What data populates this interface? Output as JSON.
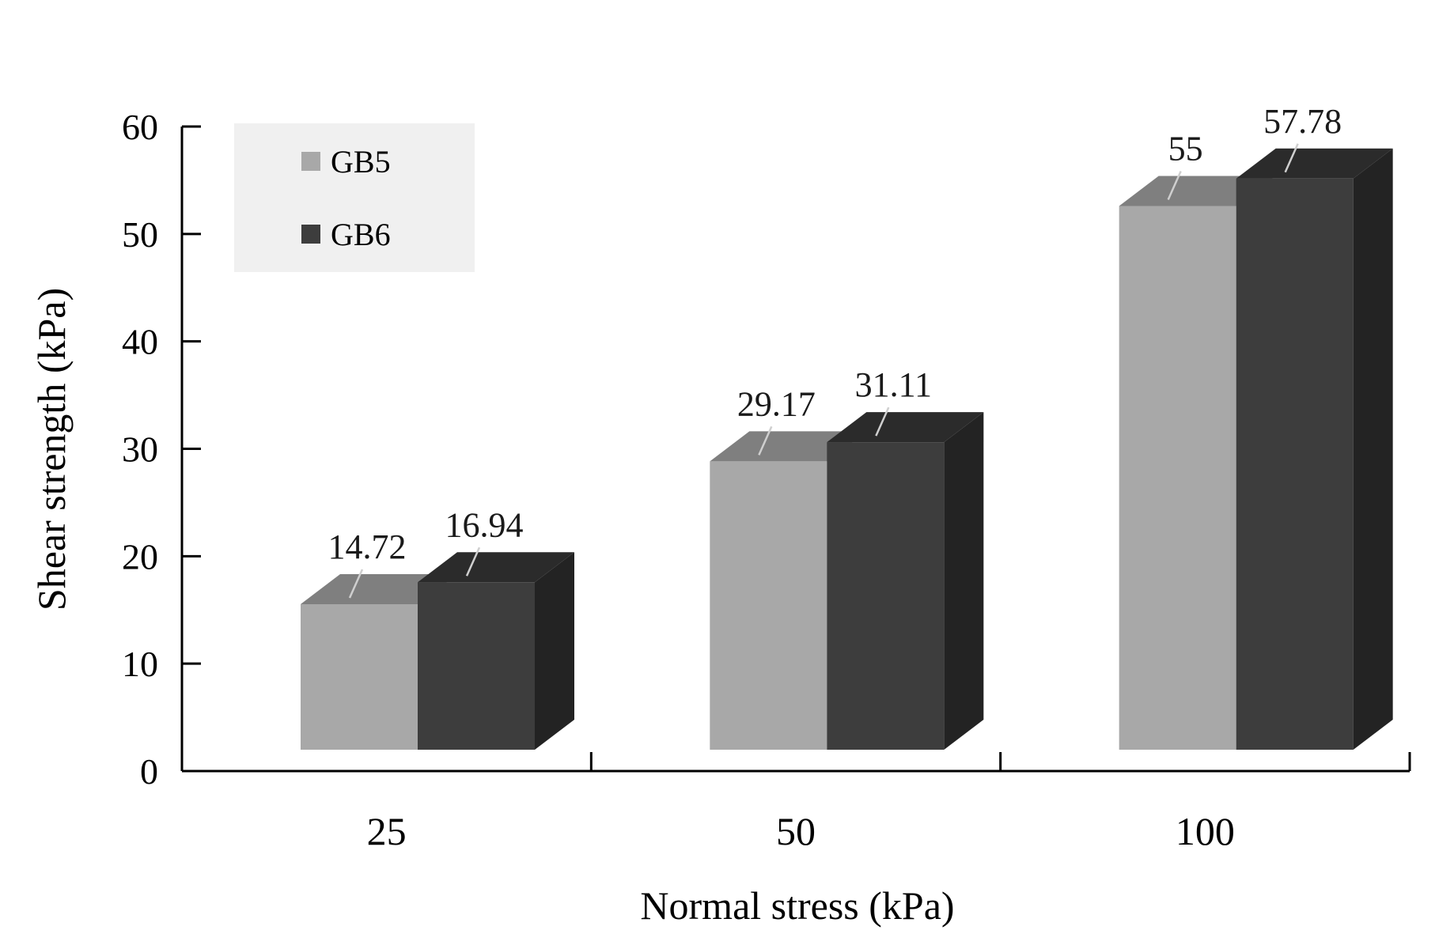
{
  "chart_data": {
    "type": "bar",
    "style": "3d-clustered",
    "categories": [
      "25",
      "50",
      "100"
    ],
    "series": [
      {
        "name": "GB5",
        "values": [
          14.72,
          29.17,
          55
        ],
        "labels": [
          "14.72",
          "29.17",
          "55"
        ],
        "color_front": "#a8a8a8",
        "color_top": "#7f7f7f",
        "color_side": "#6e6e6e"
      },
      {
        "name": "GB6",
        "values": [
          16.94,
          31.11,
          57.78
        ],
        "labels": [
          "16.94",
          "31.11",
          "57.78"
        ],
        "color_front": "#3d3d3d",
        "color_top": "#2b2b2b",
        "color_side": "#232323"
      }
    ],
    "title": "",
    "xlabel": "Normal stress (kPa)",
    "ylabel": "Shear strength (kPa)",
    "ylim": [
      0,
      60
    ],
    "yticks": [
      "0",
      "10",
      "20",
      "30",
      "40",
      "50",
      "60"
    ],
    "grid": false,
    "legend_position": "top-left"
  },
  "colors": {
    "legend_background": "#f0f0f0",
    "axis": "#000000"
  }
}
